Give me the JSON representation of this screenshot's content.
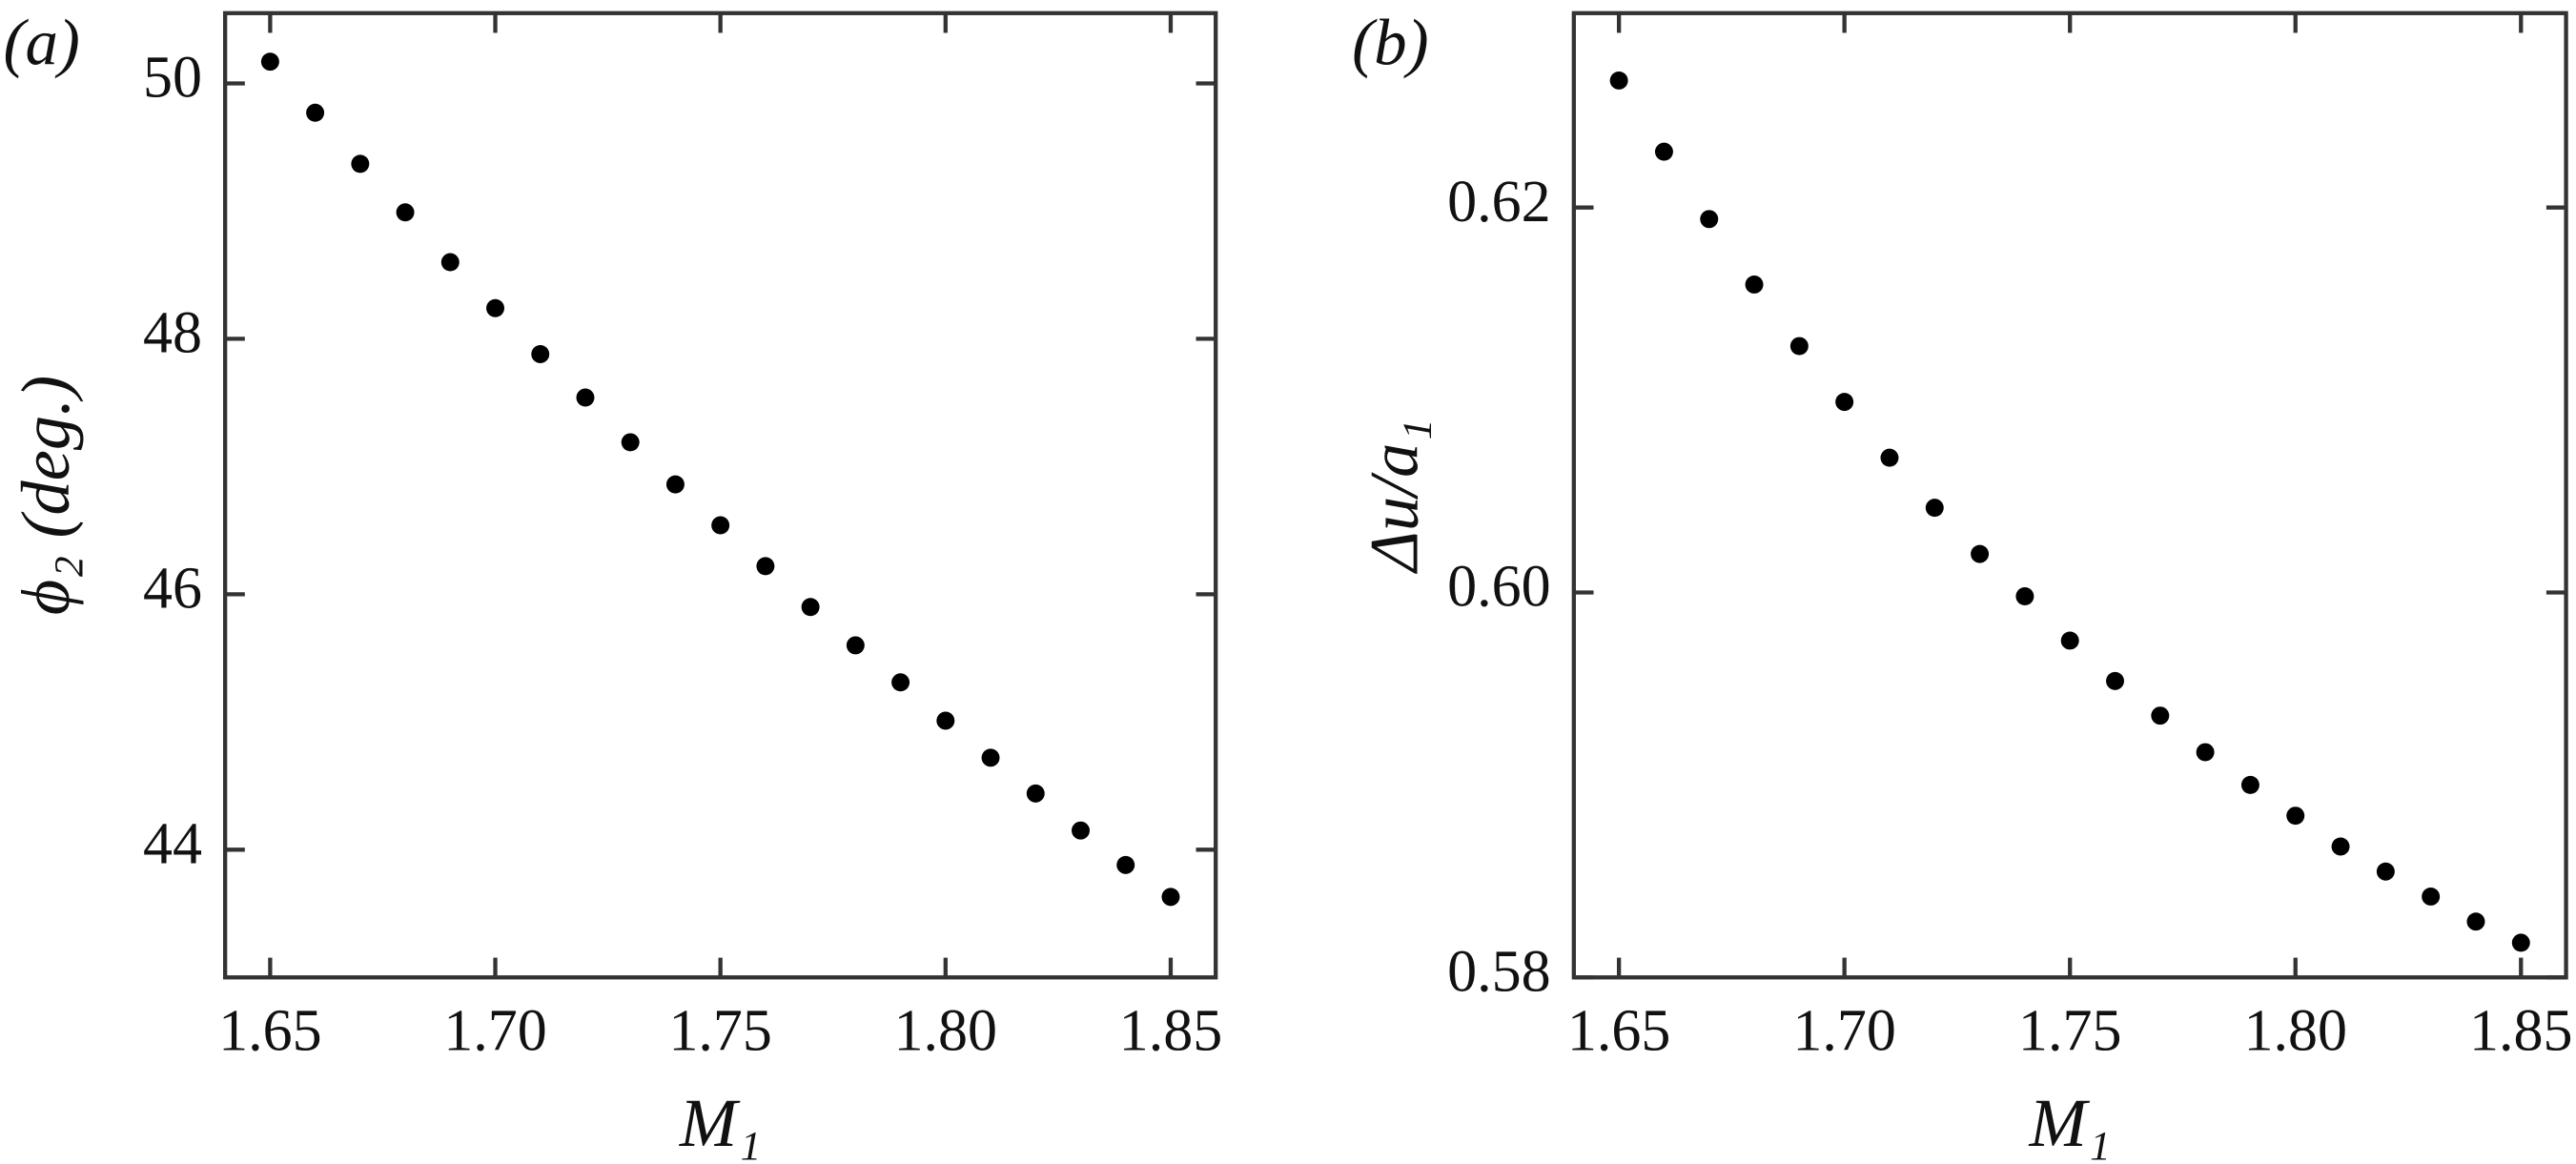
{
  "chart_data": [
    {
      "type": "scatter",
      "panel_label": "(a)",
      "x_label": "M₁",
      "y_label": "ϕ₂ (deg.)",
      "color": "#000000",
      "x": [
        1.65,
        1.66,
        1.67,
        1.68,
        1.69,
        1.7,
        1.71,
        1.72,
        1.73,
        1.74,
        1.75,
        1.76,
        1.77,
        1.78,
        1.79,
        1.8,
        1.81,
        1.82,
        1.83,
        1.84,
        1.85
      ],
      "values": [
        50.17,
        49.77,
        49.37,
        48.99,
        48.6,
        48.24,
        47.88,
        47.54,
        47.19,
        46.86,
        46.54,
        46.22,
        45.9,
        45.6,
        45.31,
        45.01,
        44.72,
        44.44,
        44.15,
        43.88,
        43.63
      ],
      "xlim": [
        1.64,
        1.86
      ],
      "ylim": [
        43,
        50.55
      ],
      "xticks": [
        1.65,
        {
          "value": 1.7,
          "label": "1.70"
        },
        1.75,
        {
          "value": 1.8,
          "label": "1.80"
        },
        1.85
      ],
      "yticks": [
        44,
        46,
        48,
        50
      ]
    },
    {
      "type": "scatter",
      "panel_label": "(b)",
      "x_label": "M₁",
      "y_label": "Δu/a₁",
      "color": "#000000",
      "x": [
        1.65,
        1.66,
        1.67,
        1.68,
        1.69,
        1.7,
        1.71,
        1.72,
        1.73,
        1.74,
        1.75,
        1.76,
        1.77,
        1.78,
        1.79,
        1.8,
        1.81,
        1.82,
        1.83,
        1.84,
        1.85
      ],
      "values": [
        0.6266,
        0.6229,
        0.6194,
        0.616,
        0.6128,
        0.6099,
        0.607,
        0.6044,
        0.602,
        0.5998,
        0.5975,
        0.5954,
        0.5936,
        0.5917,
        0.59,
        0.5884,
        0.5868,
        0.5855,
        0.5842,
        0.5829,
        0.5818
      ],
      "xlim": [
        1.64,
        1.86
      ],
      "ylim": [
        0.58,
        0.6301
      ],
      "xticks": [
        1.65,
        {
          "value": 1.7,
          "label": "1.70"
        },
        1.75,
        {
          "value": 1.8,
          "label": "1.80"
        },
        1.85
      ],
      "yticks": [
        0.58,
        {
          "value": 0.6,
          "label": "0.60"
        },
        0.62
      ]
    }
  ]
}
